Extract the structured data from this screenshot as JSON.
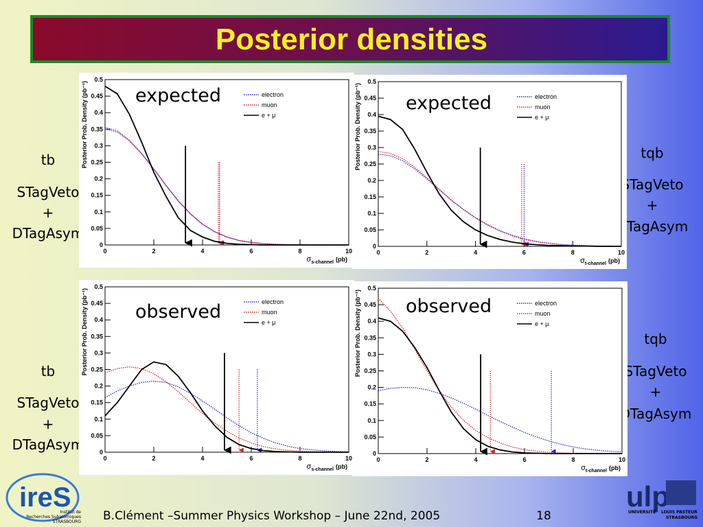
{
  "title": "Posterior densities",
  "side_labels": [
    [
      "tb",
      "STagVeto",
      "+",
      "DTagAsym"
    ],
    [
      "tqb",
      "STagVeto",
      "+",
      "DTagAsym"
    ],
    [
      "tb",
      "STagVeto",
      "+",
      "DTagAsym"
    ],
    [
      "tqb",
      "STagVeto",
      "+",
      "DTagAsym"
    ]
  ],
  "footer": {
    "text": "B.Clément –Summer Physics Workshop – June 22nd, 2005",
    "page": "18"
  },
  "logos": {
    "left": "ireS",
    "left_caption": [
      "Institut de",
      "Recherches Subatomiques",
      "STRASBOURG"
    ],
    "right": "ulp",
    "right_caption": [
      "UNIVERSITÉ",
      "LOUIS PASTEUR",
      "STRASBOURG"
    ]
  },
  "chart_data": [
    {
      "type": "line",
      "annotation": "expected",
      "ylabel": "Posterior Prob. Density (pb⁻¹)",
      "xlabel": {
        "symbol": "σ",
        "subscript": "s-channel",
        "unit": "(pb)"
      },
      "xlim": [
        0,
        10
      ],
      "xticks": [
        0,
        2,
        4,
        6,
        8,
        10
      ],
      "ylim": [
        0,
        0.5
      ],
      "yticks": [
        0,
        0.05,
        0.1,
        0.15,
        0.2,
        0.25,
        0.3,
        0.35,
        0.4,
        0.45,
        0.5
      ],
      "x": [
        0,
        0.5,
        1,
        1.5,
        2,
        2.5,
        3,
        3.5,
        4,
        4.5,
        5,
        5.5,
        6,
        6.5,
        7,
        7.5,
        8,
        8.5,
        9,
        9.5,
        10
      ],
      "series": [
        {
          "name": "electron",
          "color": "#2020e0",
          "style": "dotted",
          "limit": 4.7,
          "limit_height": 0.25,
          "values": [
            0.355,
            0.345,
            0.317,
            0.277,
            0.23,
            0.18,
            0.133,
            0.094,
            0.062,
            0.04,
            0.024,
            0.013,
            0.007,
            0.004,
            0.002,
            0.001,
            0.001,
            0,
            0,
            0,
            0
          ]
        },
        {
          "name": "muon",
          "color": "#e02020",
          "style": "dotted",
          "limit": 4.65,
          "limit_height": 0.25,
          "values": [
            0.35,
            0.341,
            0.314,
            0.275,
            0.229,
            0.18,
            0.134,
            0.095,
            0.063,
            0.04,
            0.024,
            0.014,
            0.008,
            0.004,
            0.002,
            0.001,
            0.001,
            0,
            0,
            0,
            0
          ]
        },
        {
          "name": "e + μ",
          "color": "#000000",
          "style": "solid",
          "limit": 3.3,
          "limit_height": 0.3,
          "values": [
            0.48,
            0.457,
            0.395,
            0.311,
            0.22,
            0.147,
            0.083,
            0.044,
            0.024,
            0.011,
            0.005,
            0.002,
            0.001,
            0,
            0,
            0,
            0,
            0,
            0,
            0,
            0
          ]
        }
      ]
    },
    {
      "type": "line",
      "annotation": "expected",
      "ylabel": "Posterior Prob. Density (pb⁻¹)",
      "xlabel": {
        "symbol": "σ",
        "subscript": "t-channel",
        "unit": "(pb)"
      },
      "xlim": [
        0,
        10
      ],
      "xticks": [
        0,
        2,
        4,
        6,
        8,
        10
      ],
      "ylim": [
        0,
        0.5
      ],
      "yticks": [
        0,
        0.05,
        0.1,
        0.15,
        0.2,
        0.25,
        0.3,
        0.35,
        0.4,
        0.45,
        0.5
      ],
      "x": [
        0,
        0.5,
        1,
        1.5,
        2,
        2.5,
        3,
        3.5,
        4,
        4.5,
        5,
        5.5,
        6,
        6.5,
        7,
        7.5,
        8,
        8.5,
        9,
        9.5,
        10
      ],
      "series": [
        {
          "name": "electron",
          "color": "#2020e0",
          "style": "dotted",
          "limit": 6.0,
          "limit_height": 0.25,
          "values": [
            0.28,
            0.275,
            0.26,
            0.235,
            0.205,
            0.172,
            0.14,
            0.112,
            0.087,
            0.066,
            0.048,
            0.034,
            0.023,
            0.015,
            0.01,
            0.006,
            0.004,
            0.002,
            0.001,
            0.001,
            0
          ]
        },
        {
          "name": "muon",
          "color": "#e02020",
          "style": "dotted",
          "limit": 5.9,
          "limit_height": 0.25,
          "values": [
            0.288,
            0.282,
            0.266,
            0.24,
            0.208,
            0.174,
            0.141,
            0.112,
            0.086,
            0.064,
            0.046,
            0.032,
            0.021,
            0.014,
            0.009,
            0.005,
            0.003,
            0.002,
            0.001,
            0.001,
            0
          ]
        },
        {
          "name": "e + μ",
          "color": "#000000",
          "style": "solid",
          "limit": 4.2,
          "limit_height": 0.3,
          "values": [
            0.395,
            0.385,
            0.355,
            0.295,
            0.225,
            0.16,
            0.11,
            0.075,
            0.05,
            0.033,
            0.021,
            0.013,
            0.008,
            0.005,
            0.003,
            0.002,
            0.001,
            0.001,
            0,
            0,
            0
          ]
        }
      ]
    },
    {
      "type": "line",
      "annotation": "observed",
      "ylabel": "Posterior Prob. Density (pb⁻¹)",
      "xlabel": {
        "symbol": "σ",
        "subscript": "s-channel",
        "unit": "(pb)"
      },
      "xlim": [
        0,
        10
      ],
      "xticks": [
        0,
        2,
        4,
        6,
        8,
        10
      ],
      "ylim": [
        0,
        0.5
      ],
      "yticks": [
        0,
        0.05,
        0.1,
        0.15,
        0.2,
        0.25,
        0.3,
        0.35,
        0.4,
        0.45,
        0.5
      ],
      "x": [
        0,
        0.5,
        1,
        1.5,
        2,
        2.5,
        3,
        3.5,
        4,
        4.5,
        5,
        5.5,
        6,
        6.5,
        7,
        7.5,
        8,
        8.5,
        9,
        9.5,
        10
      ],
      "series": [
        {
          "name": "electron",
          "color": "#2020e0",
          "style": "dotted",
          "limit": 6.25,
          "limit_height": 0.25,
          "values": [
            0.165,
            0.185,
            0.2,
            0.211,
            0.215,
            0.211,
            0.198,
            0.178,
            0.155,
            0.13,
            0.104,
            0.08,
            0.059,
            0.042,
            0.028,
            0.018,
            0.011,
            0.007,
            0.004,
            0.002,
            0.001
          ]
        },
        {
          "name": "muon",
          "color": "#e02020",
          "style": "dotted",
          "limit": 5.5,
          "limit_height": 0.25,
          "values": [
            0.24,
            0.253,
            0.258,
            0.253,
            0.237,
            0.213,
            0.183,
            0.15,
            0.117,
            0.088,
            0.063,
            0.043,
            0.028,
            0.017,
            0.01,
            0.006,
            0.003,
            0.002,
            0.001,
            0,
            0
          ]
        },
        {
          "name": "e + μ",
          "color": "#000000",
          "style": "solid",
          "limit": 4.9,
          "limit_height": 0.3,
          "values": [
            0.11,
            0.15,
            0.2,
            0.25,
            0.273,
            0.265,
            0.23,
            0.18,
            0.125,
            0.08,
            0.045,
            0.023,
            0.011,
            0.005,
            0.002,
            0.001,
            0,
            0,
            0,
            0,
            0
          ]
        }
      ]
    },
    {
      "type": "line",
      "annotation": "observed",
      "ylabel": "Posterior Prob. Density (pb⁻¹)",
      "xlabel": {
        "symbol": "σ",
        "subscript": "t-channel",
        "unit": "(pb)"
      },
      "xlim": [
        0,
        10
      ],
      "xticks": [
        0,
        2,
        4,
        6,
        8,
        10
      ],
      "ylim": [
        0,
        0.5
      ],
      "yticks": [
        0,
        0.05,
        0.1,
        0.15,
        0.2,
        0.25,
        0.3,
        0.35,
        0.4,
        0.45,
        0.5
      ],
      "x": [
        0,
        0.5,
        1,
        1.5,
        2,
        2.5,
        3,
        3.5,
        4,
        4.5,
        5,
        5.5,
        6,
        6.5,
        7,
        7.5,
        8,
        8.5,
        9,
        9.5,
        10
      ],
      "series": [
        {
          "name": "electron",
          "color": "#2020e0",
          "style": "dotted",
          "limit": 7.1,
          "limit_height": 0.25,
          "values": [
            0.19,
            0.197,
            0.2,
            0.199,
            0.193,
            0.182,
            0.168,
            0.152,
            0.134,
            0.115,
            0.097,
            0.08,
            0.064,
            0.05,
            0.038,
            0.028,
            0.02,
            0.014,
            0.01,
            0.007,
            0.005
          ]
        },
        {
          "name": "muon",
          "color": "#e02020",
          "style": "dotted",
          "limit": 4.6,
          "limit_height": 0.25,
          "values": [
            0.47,
            0.43,
            0.38,
            0.315,
            0.25,
            0.19,
            0.14,
            0.1,
            0.07,
            0.048,
            0.032,
            0.02,
            0.012,
            0.007,
            0.004,
            0.002,
            0.001,
            0.001,
            0,
            0,
            0
          ]
        },
        {
          "name": "e + μ",
          "color": "#000000",
          "style": "solid",
          "limit": 4.2,
          "limit_height": 0.3,
          "values": [
            0.41,
            0.4,
            0.37,
            0.32,
            0.26,
            0.19,
            0.125,
            0.075,
            0.042,
            0.022,
            0.011,
            0.005,
            0.002,
            0.001,
            0,
            0,
            0,
            0,
            0,
            0,
            0
          ]
        }
      ]
    }
  ]
}
